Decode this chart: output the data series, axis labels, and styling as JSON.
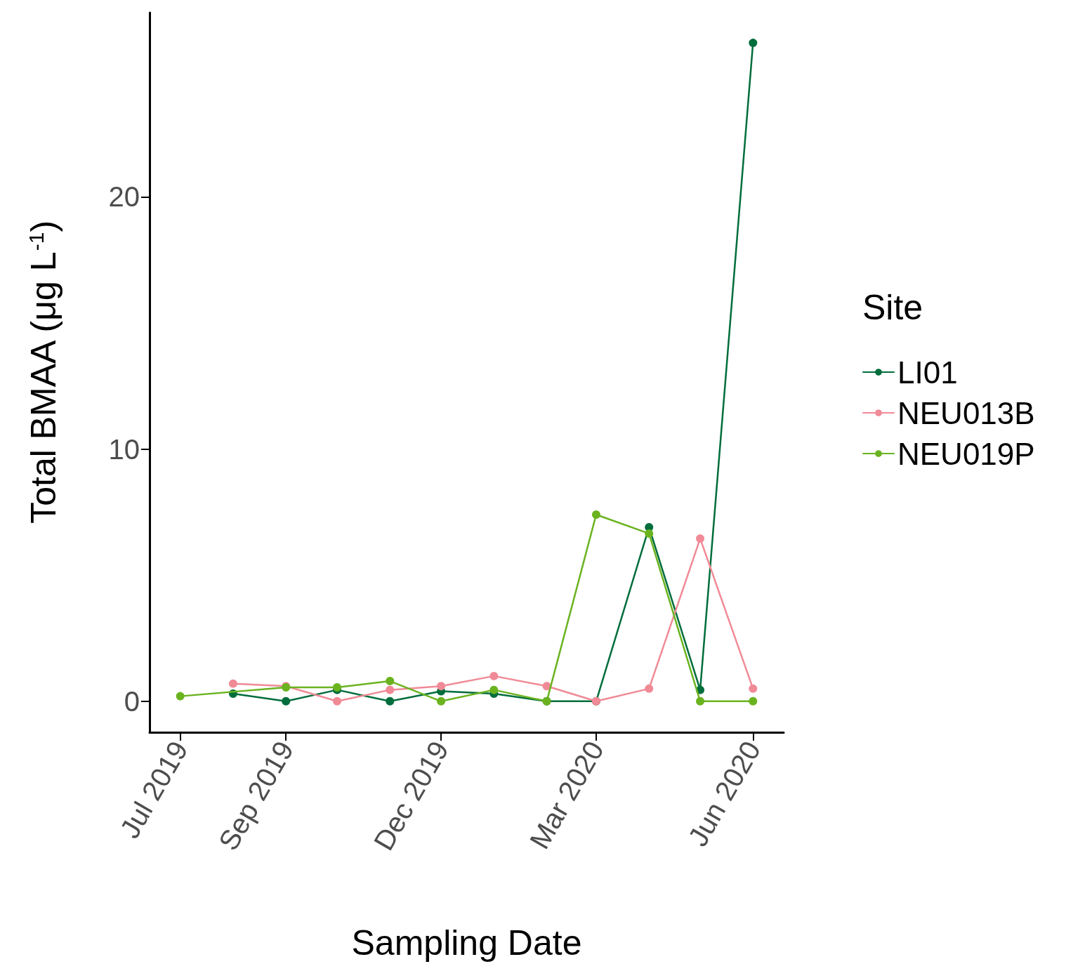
{
  "chart_data": {
    "type": "line",
    "xlabel": "Sampling Date",
    "ylabel": "Total BMAA (μg L$^{-1}$)",
    "legend_title": "Site",
    "x": [
      "2019-08",
      "2019-09",
      "2019-10",
      "2019-11",
      "2019-12",
      "2020-01",
      "2020-02",
      "2020-03",
      "2020-04",
      "2020-05",
      "2020-06"
    ],
    "series": [
      {
        "name": "LI01",
        "color": "#006d3c",
        "values": [
          0.3,
          0,
          0.45,
          0,
          0.4,
          0.3,
          0,
          0,
          6.9,
          0.45,
          26.1
        ]
      },
      {
        "name": "NEU013B",
        "color": "#f08a96",
        "values": [
          0.7,
          0.6,
          0,
          0.45,
          0.6,
          1.0,
          0.6,
          0,
          0.5,
          6.45,
          0.5
        ]
      },
      {
        "name": "NEU019P",
        "color": "#6ab31f",
        "x": [
          "2019-07",
          "2019-09",
          "2019-10",
          "2019-11",
          "2019-12",
          "2020-01",
          "2020-02",
          "2020-03",
          "2020-04",
          "2020-05",
          "2020-06"
        ],
        "values": [
          0.2,
          0.55,
          0.55,
          0.8,
          0,
          0.45,
          0,
          7.4,
          6.65,
          0,
          0
        ]
      }
    ],
    "xlim": [
      "2019-06-13",
      "2020-06-19"
    ],
    "xticks": [
      {
        "value": "2019-07",
        "label": "Jul 2019"
      },
      {
        "value": "2019-09",
        "label": "Sep 2019"
      },
      {
        "value": "2019-12",
        "label": "Dec 2019"
      },
      {
        "value": "2020-03",
        "label": "Mar 2020"
      },
      {
        "value": "2020-06",
        "label": "Jun 2020"
      }
    ],
    "ylim": [
      -1.23,
      27.3
    ],
    "yticks": [
      0,
      10,
      20
    ],
    "grid": false,
    "legend": "right",
    "marker": "circle",
    "line_style": "solid"
  }
}
